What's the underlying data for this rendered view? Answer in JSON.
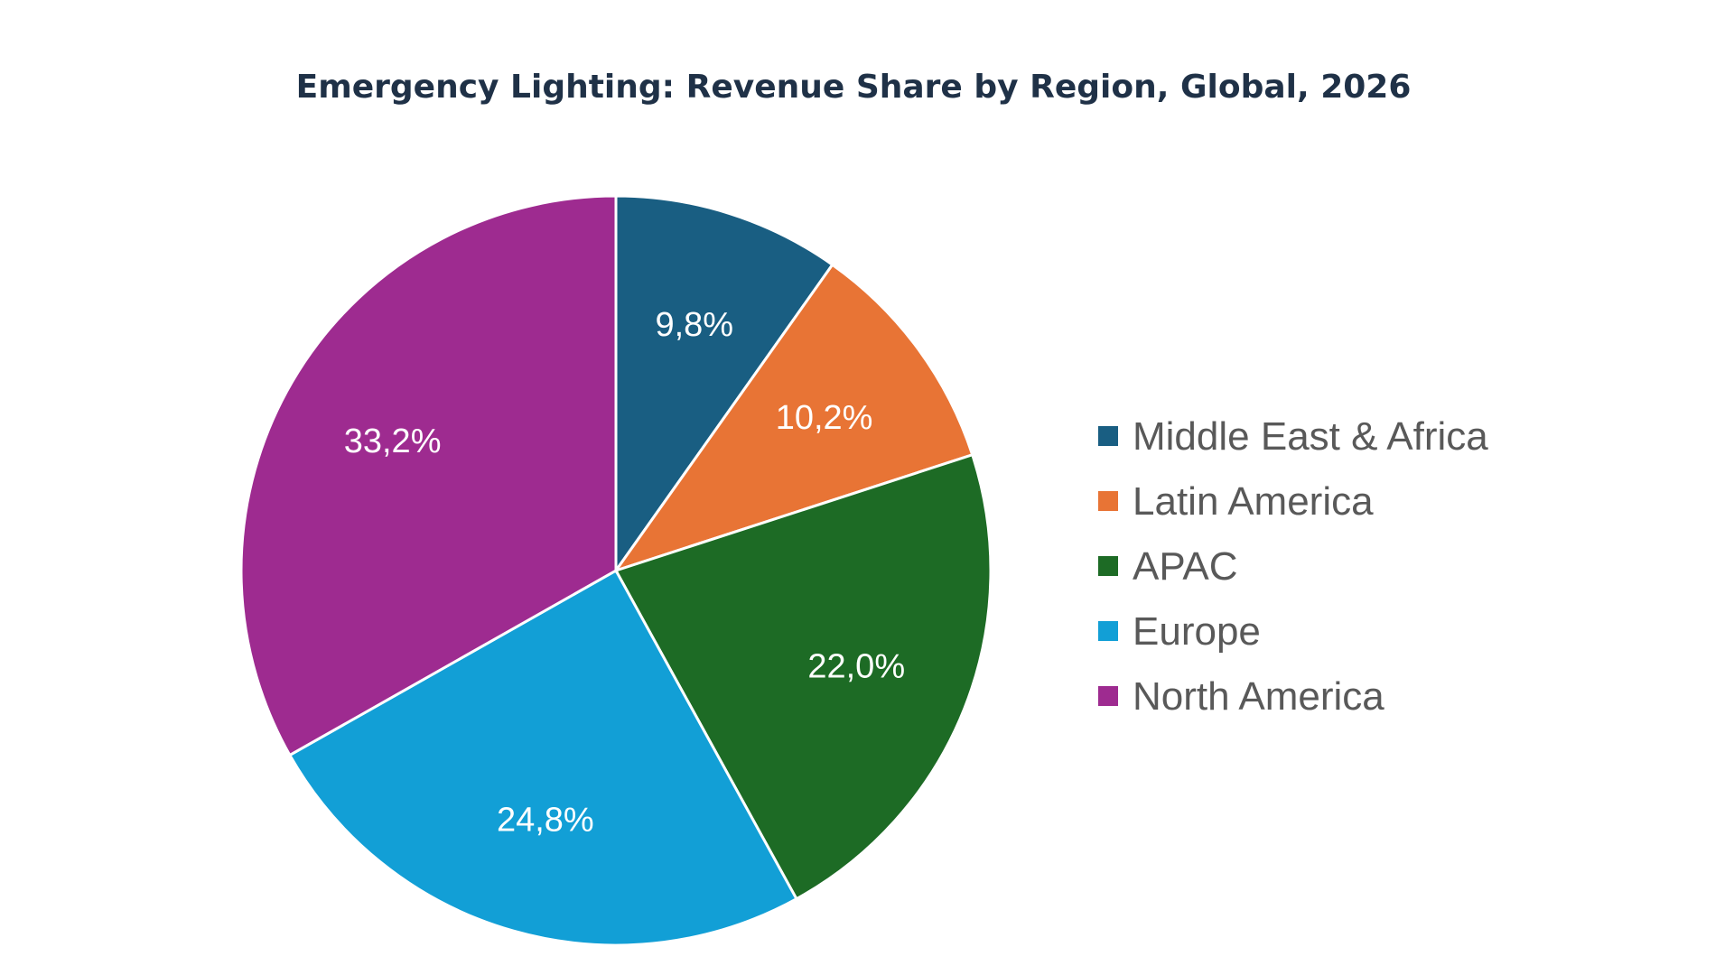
{
  "chart_data": {
    "type": "pie",
    "title": "Emergency Lighting: Revenue Share by Region, Global, 2026",
    "start_angle_deg": 0,
    "direction": "clockwise",
    "slices": [
      {
        "name": "Middle East & Africa",
        "value": 9.8,
        "label": "9,8%",
        "color": "#195e82"
      },
      {
        "name": "Latin America",
        "value": 10.2,
        "label": "10,2%",
        "color": "#e87435"
      },
      {
        "name": "APAC",
        "value": 22.0,
        "label": "22,0%",
        "color": "#1d6b25"
      },
      {
        "name": "Europe",
        "value": 24.8,
        "label": "24,8%",
        "color": "#129fd6"
      },
      {
        "name": "North America",
        "value": 33.2,
        "label": "33,2%",
        "color": "#9e2b90"
      }
    ],
    "legend_position": "right",
    "data_labels": "inside"
  }
}
